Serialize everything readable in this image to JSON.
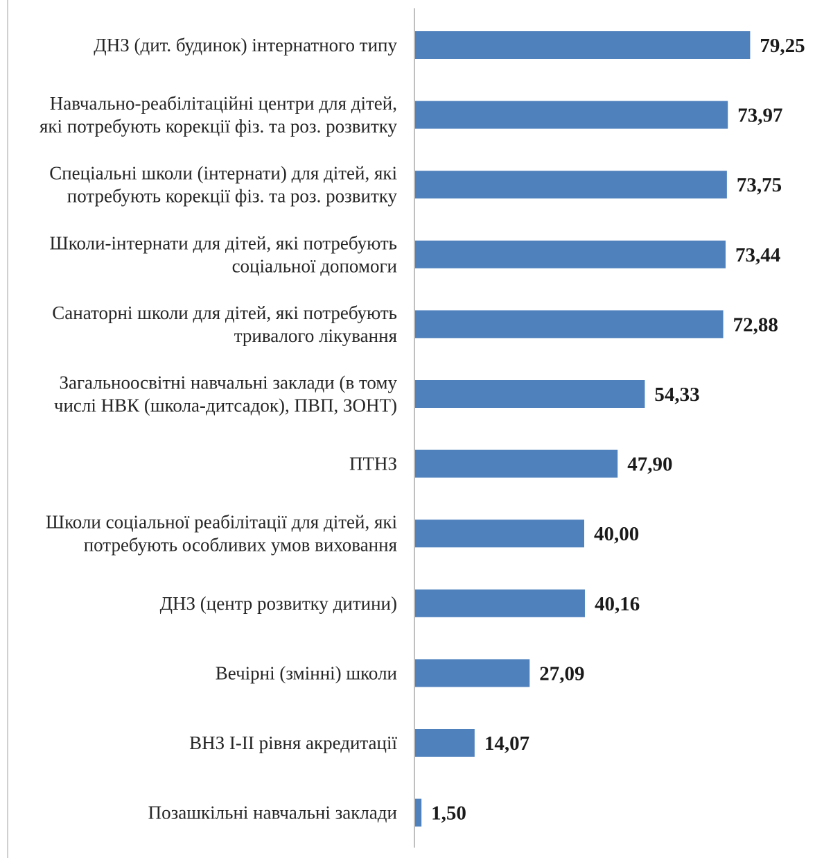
{
  "chart_data": {
    "type": "bar",
    "orientation": "horizontal",
    "title": "",
    "xlabel": "",
    "ylabel": "",
    "grid": false,
    "legend": "none",
    "xlim": [
      0,
      80
    ],
    "bar_color": "#4f81bd",
    "axis_color": "#bfbfbf",
    "categories": [
      [
        "ДНЗ (дит. будинок) інтернатного типу"
      ],
      [
        "Навчально-реабілітаційні центри для дітей,",
        "які потребують корекції фіз. та роз. розвитку"
      ],
      [
        "Спеціальні школи (інтернати) для дітей, які",
        "потребують корекції фіз. та роз. розвитку"
      ],
      [
        "Школи-інтернати для дітей, які потребують",
        "соціальної допомоги"
      ],
      [
        "Санаторні школи для дітей, які потребують",
        "тривалого лікування"
      ],
      [
        "Загальноосвітні навчальні заклади (в тому",
        "числі НВК (школа-дитсадок), ПВП, ЗОНТ)"
      ],
      [
        "ПТНЗ"
      ],
      [
        "Школи соціальної реабілітації для дітей, які",
        "потребують особливих умов виховання"
      ],
      [
        "ДНЗ (центр розвитку дитини)"
      ],
      [
        "Вечірні (змінні) школи"
      ],
      [
        "ВНЗ І-ІІ рівня акредитації"
      ],
      [
        "Позашкільні навчальні заклади"
      ]
    ],
    "values": [
      79.25,
      73.97,
      73.75,
      73.44,
      72.88,
      54.33,
      47.9,
      40.0,
      40.16,
      27.09,
      14.07,
      1.5
    ],
    "value_labels": [
      "79,25",
      "73,97",
      "73,75",
      "73,44",
      "72,88",
      "54,33",
      "47,90",
      "40,00",
      "40,16",
      "27,09",
      "14,07",
      "1,50"
    ]
  }
}
